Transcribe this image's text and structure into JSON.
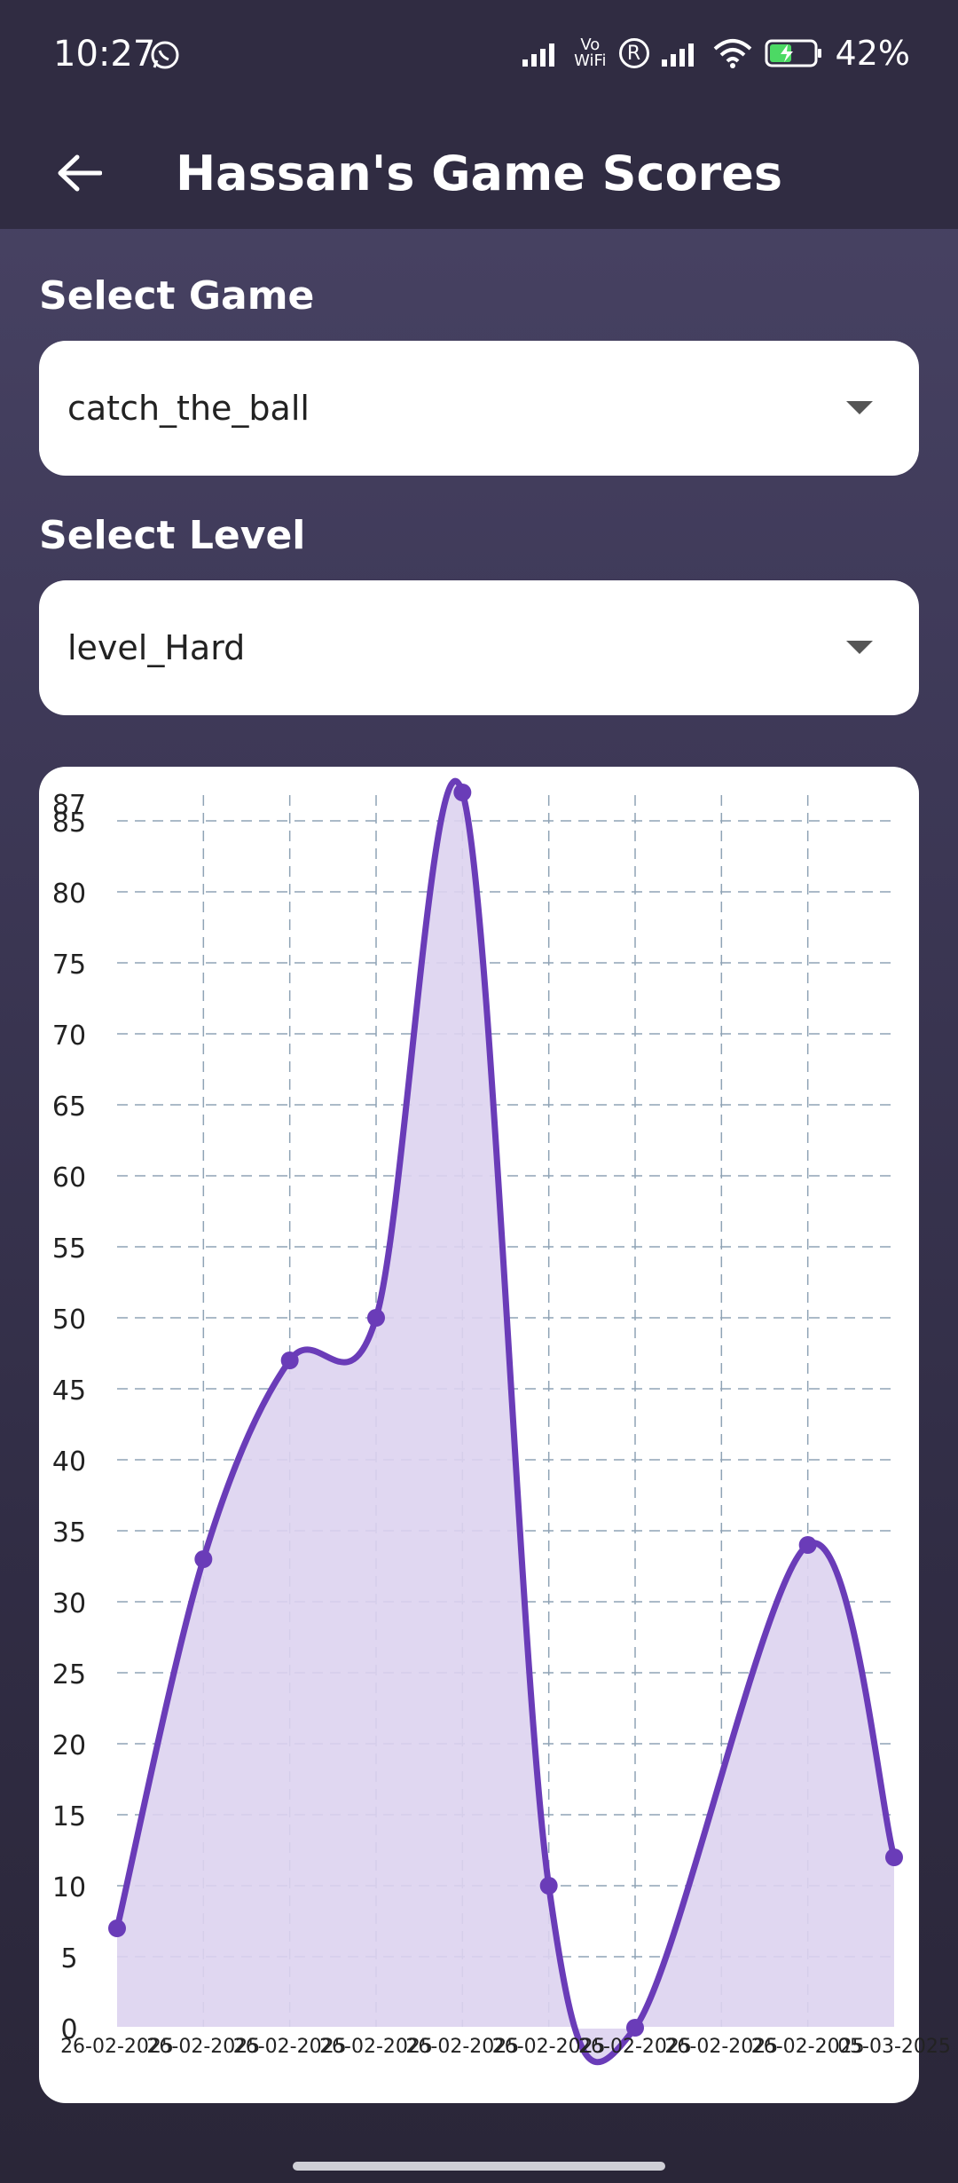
{
  "status_bar": {
    "time": "10:27",
    "battery": "42%",
    "vowifi_top": "Vo",
    "vowifi_bottom": "WiFi",
    "registered": "R"
  },
  "app_bar": {
    "title": "Hassan's Game Scores"
  },
  "game_select": {
    "label": "Select Game",
    "value": "catch_the_ball"
  },
  "level_select": {
    "label": "Select Level",
    "value": "level_Hard"
  },
  "colors": {
    "line": "#6a3cb8",
    "fill": "#ddd3f0",
    "grid": "#8fa3b5"
  },
  "chart_data": {
    "type": "line",
    "curved": true,
    "filled": true,
    "grid": true,
    "x_tick_labels": [
      "26-02-2025",
      "26-02-2025",
      "26-02-2025",
      "26-02-2025",
      "26-02-2025",
      "26-02-2025",
      "26-02-2025",
      "26-02-2025",
      "26-02-2025",
      "05-03-2025"
    ],
    "points": [
      {
        "x": 0,
        "y": 7
      },
      {
        "x": 1,
        "y": 33
      },
      {
        "x": 2,
        "y": 47
      },
      {
        "x": 3,
        "y": 50
      },
      {
        "x": 4,
        "y": 87
      },
      {
        "x": 5,
        "y": 10
      },
      {
        "x": 6,
        "y": 0
      },
      {
        "x": 8,
        "y": 34
      },
      {
        "x": 9,
        "y": 12
      }
    ],
    "y_tick_labels": [
      "0",
      "5",
      "10",
      "15",
      "20",
      "25",
      "30",
      "35",
      "40",
      "45",
      "50",
      "55",
      "60",
      "65",
      "70",
      "75",
      "80",
      "85",
      "87"
    ],
    "xlim": [
      0,
      9
    ],
    "ylim": [
      0,
      87
    ]
  }
}
